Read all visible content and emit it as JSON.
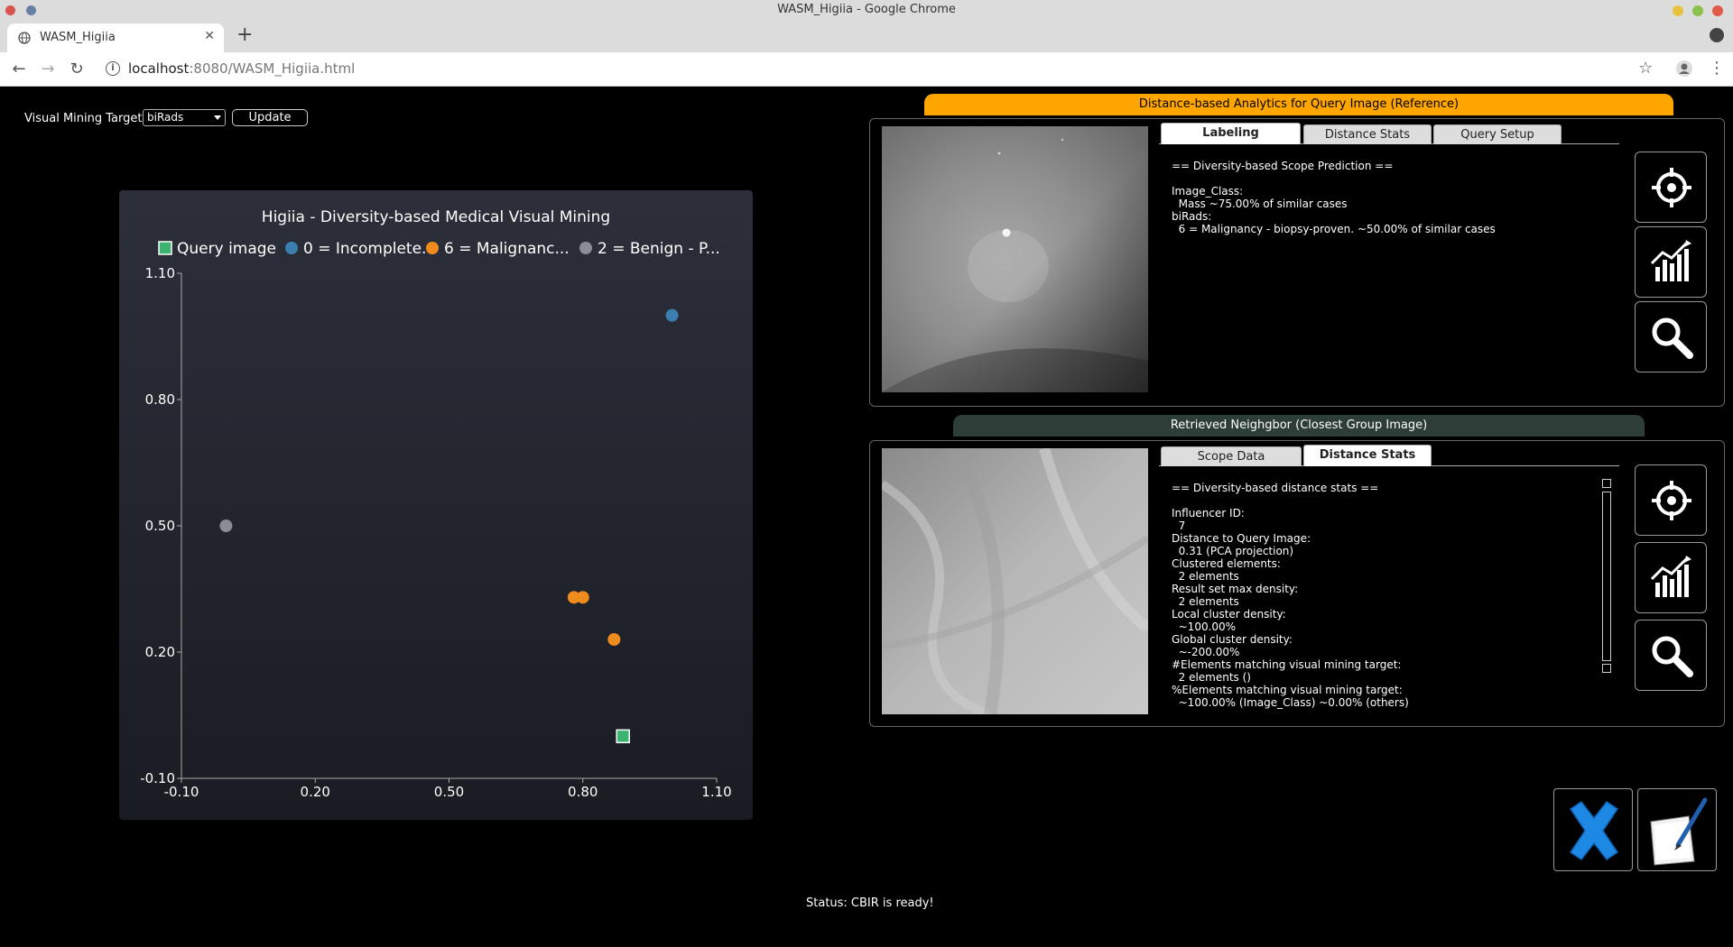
{
  "window": {
    "title": "WASM_Higiia - Google Chrome",
    "tab_title": "WASM_Higiia",
    "url_host": "localhost",
    "url_path": ":8080/WASM_Higiia.html"
  },
  "controls": {
    "vmt_label": "Visual Mining Target:",
    "vmt_value": "biRads",
    "update_label": "Update"
  },
  "chart_data": {
    "type": "scatter",
    "title": "Higiia - Diversity-based Medical Visual Mining",
    "xlim": [
      -0.1,
      1.1
    ],
    "ylim": [
      -0.1,
      1.1
    ],
    "xticks": [
      "-0.10",
      "0.20",
      "0.50",
      "0.80",
      "1.10"
    ],
    "yticks": [
      "-0.10",
      "0.20",
      "0.50",
      "0.80",
      "1.10"
    ],
    "series": [
      {
        "name": "Query image",
        "color": "#3cb371",
        "marker": "square",
        "points": [
          [
            0.89,
            0.0
          ]
        ]
      },
      {
        "name": "0 = Incomplete.",
        "color": "#3a7fb0",
        "marker": "circle",
        "points": [
          [
            1.0,
            1.0
          ]
        ]
      },
      {
        "name": "6 = Malignanc...",
        "color": "#f08c1e",
        "marker": "circle",
        "points": [
          [
            0.78,
            0.33
          ],
          [
            0.8,
            0.33
          ],
          [
            0.87,
            0.23
          ]
        ]
      },
      {
        "name": "2 = Benign - P...",
        "color": "#8a8d96",
        "marker": "circle",
        "points": [
          [
            0.0,
            0.5
          ]
        ]
      }
    ]
  },
  "reference": {
    "banner": "Distance-based Analytics for Query Image (Reference)",
    "tabs": [
      "Labeling",
      "Distance Stats",
      "Query Setup"
    ],
    "active_tab": "Labeling",
    "lines": [
      "== Diversity-based Scope Prediction ==",
      "",
      "Image_Class:",
      "  Mass ~75.00% of similar cases",
      "biRads:",
      "  6 = Malignancy - biopsy-proven. ~50.00% of similar cases"
    ]
  },
  "neighbor": {
    "banner": "Retrieved Neighgbor (Closest Group Image)",
    "tabs": [
      "Scope Data",
      "Distance Stats"
    ],
    "active_tab": "Distance Stats",
    "lines": [
      "== Diversity-based distance stats ==",
      "",
      "Influencer ID:",
      "  7",
      "Distance to Query Image:",
      "  0.31 (PCA projection)",
      "Clustered elements:",
      "  2 elements",
      "Result set max density:",
      "  2 elements",
      "Local cluster density:",
      "  ~100.00%",
      "Global cluster density:",
      "  ~-200.00%",
      "#Elements matching visual mining target:",
      "  2 elements ()",
      "%Elements matching visual mining target:",
      "  ~100.00% (Image_Class) ~0.00% (others)"
    ]
  },
  "status": {
    "text": "Status:  CBIR is ready!"
  },
  "colors": {
    "banner_orange": "#ffa500",
    "banner_dark": "#2d3d38",
    "close_blue": "#1e88e5"
  }
}
